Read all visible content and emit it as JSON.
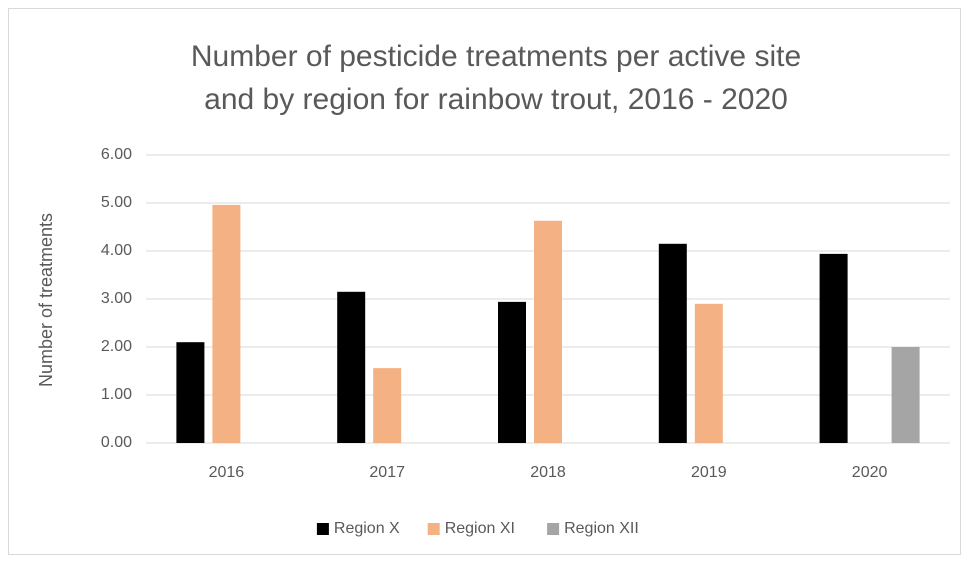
{
  "chart_data": {
    "type": "bar",
    "title": [
      "Number of pesticide treatments per active site",
      "and by region for rainbow trout, 2016 - 2020"
    ],
    "y_label": "Number of treatments",
    "categories": [
      "2016",
      "2017",
      "2018",
      "2019",
      "2020"
    ],
    "series": [
      {
        "name": "Region X",
        "color": "#000000",
        "values": [
          2.1,
          3.15,
          2.94,
          4.15,
          3.94
        ]
      },
      {
        "name": "Region XI",
        "color": "#f4b183",
        "values": [
          4.96,
          1.56,
          4.63,
          2.9,
          null
        ]
      },
      {
        "name": "Region XII",
        "color": "#a5a5a5",
        "values": [
          null,
          null,
          null,
          null,
          2.0
        ]
      }
    ],
    "ylim": [
      0,
      6
    ],
    "yticks": [
      {
        "value": 0,
        "label": "0.00"
      },
      {
        "value": 1,
        "label": "1.00"
      },
      {
        "value": 2,
        "label": "2.00"
      },
      {
        "value": 3,
        "label": "3.00"
      },
      {
        "value": 4,
        "label": "4.00"
      },
      {
        "value": 5,
        "label": "5.00"
      },
      {
        "value": 6,
        "label": "6.00"
      }
    ],
    "grid": true,
    "legend": "bottom"
  }
}
